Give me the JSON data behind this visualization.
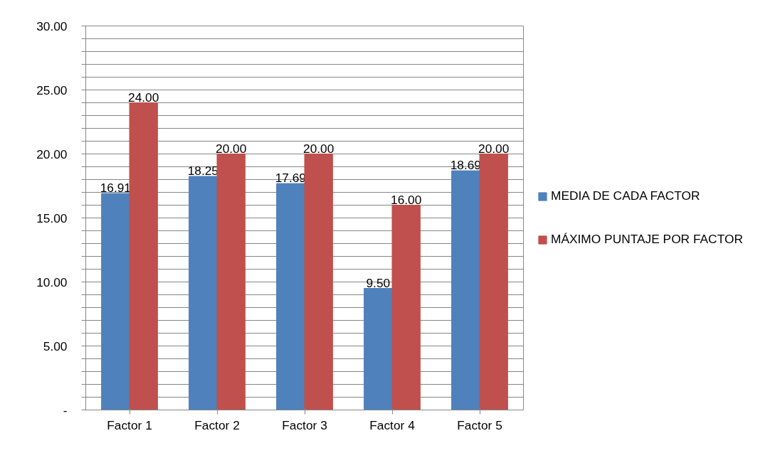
{
  "chart_data": {
    "type": "bar",
    "categories": [
      "Factor 1",
      "Factor 2",
      "Factor 3",
      "Factor 4",
      "Factor 5"
    ],
    "series": [
      {
        "name": "MEDIA DE CADA FACTOR",
        "color": "#4f81bd",
        "values": [
          16.91,
          18.25,
          17.69,
          9.5,
          18.69
        ],
        "value_labels": [
          "16.91",
          "18.25",
          "17.69",
          "9.50",
          "18.69"
        ]
      },
      {
        "name": "MÁXIMO PUNTAJE POR FACTOR",
        "color": "#c0504d",
        "values": [
          24.0,
          20.0,
          20.0,
          16.0,
          20.0
        ],
        "value_labels": [
          "24.00",
          "20.00",
          "20.00",
          "16.00",
          "20.00"
        ]
      }
    ],
    "ylim": [
      0,
      30
    ],
    "yticks": [
      {
        "value": 0,
        "label": "-"
      },
      {
        "value": 1,
        "label": null
      },
      {
        "value": 2,
        "label": null
      },
      {
        "value": 3,
        "label": null
      },
      {
        "value": 4,
        "label": null
      },
      {
        "value": 5,
        "label": "5.00"
      },
      {
        "value": 6,
        "label": null
      },
      {
        "value": 7,
        "label": null
      },
      {
        "value": 8,
        "label": null
      },
      {
        "value": 9,
        "label": null
      },
      {
        "value": 10,
        "label": "10.00"
      },
      {
        "value": 11,
        "label": null
      },
      {
        "value": 12,
        "label": null
      },
      {
        "value": 13,
        "label": null
      },
      {
        "value": 14,
        "label": null
      },
      {
        "value": 15,
        "label": "15.00"
      },
      {
        "value": 16,
        "label": null
      },
      {
        "value": 17,
        "label": null
      },
      {
        "value": 18,
        "label": null
      },
      {
        "value": 19,
        "label": null
      },
      {
        "value": 20,
        "label": "20.00"
      },
      {
        "value": 21,
        "label": null
      },
      {
        "value": 22,
        "label": null
      },
      {
        "value": 23,
        "label": null
      },
      {
        "value": 24,
        "label": null
      },
      {
        "value": 25,
        "label": "25.00"
      },
      {
        "value": 26,
        "label": null
      },
      {
        "value": 27,
        "label": null
      },
      {
        "value": 28,
        "label": null
      },
      {
        "value": 29,
        "label": null
      },
      {
        "value": 30,
        "label": "30.00"
      }
    ],
    "grid": "y",
    "legend": "right",
    "data_labels": true
  }
}
